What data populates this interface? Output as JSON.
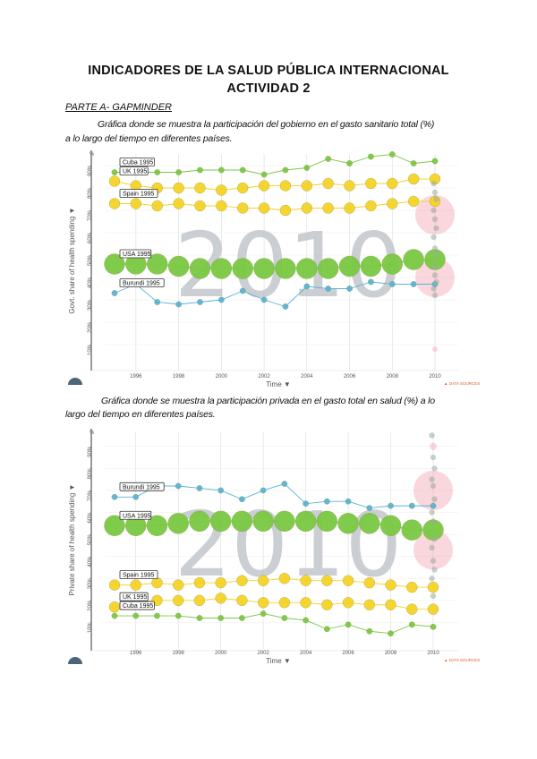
{
  "document": {
    "title_line1": "INDICADORES DE LA SALUD PÚBLICA INTERNACIONAL",
    "title_line2": "ACTIVIDAD 2",
    "section": "PARTE A- GAPMINDER",
    "caption1_line1": "Gráfica donde se muestra la participación del gobierno en el gasto sanitario total (%)",
    "caption1_line2": "a lo largo del tiempo en diferentes países.",
    "caption2_line1": "Gráfica donde se muestra la participación privada en el gasto total en salud (%) a lo",
    "caption2_line2": "largo del tiempo en diferentes países."
  },
  "chart_data": [
    {
      "type": "scatter",
      "title": "Govt. share of health spending",
      "ylabel": "Govt. share of health spending ▼",
      "xlabel": "Time ▼",
      "watermark_year": "2010",
      "source_label": "▲ DATA SOURCES",
      "x_ticks": [
        "1996",
        "1998",
        "2000",
        "2002",
        "2004",
        "2006",
        "2008",
        "2010"
      ],
      "y_ticks": [
        "10%",
        "20%",
        "30%",
        "40%",
        "50%",
        "60%",
        "70%",
        "80%",
        "90%"
      ],
      "y_unit": "%",
      "xlim": [
        1995,
        2010
      ],
      "ylim": [
        0,
        100
      ],
      "series": [
        {
          "name": "Cuba 1995",
          "color": "#7ac943",
          "size": "small",
          "x": [
            1995,
            1996,
            1997,
            1998,
            1999,
            2000,
            2001,
            2002,
            2003,
            2004,
            2005,
            2006,
            2007,
            2008,
            2009,
            2010
          ],
          "values": [
            87,
            87,
            87,
            87,
            88,
            88,
            88,
            86,
            88,
            89,
            93,
            91,
            94,
            95,
            91,
            92
          ]
        },
        {
          "name": "UK 1995",
          "color": "#f5d327",
          "size": "medium",
          "x": [
            1995,
            1996,
            1997,
            1998,
            1999,
            2000,
            2001,
            2002,
            2003,
            2004,
            2005,
            2006,
            2007,
            2008,
            2009,
            2010
          ],
          "values": [
            83,
            81,
            80,
            80,
            80,
            79,
            80,
            81,
            81,
            81,
            82,
            81,
            82,
            82,
            84,
            84
          ]
        },
        {
          "name": "Spain 1995",
          "color": "#f5d327",
          "size": "medium",
          "x": [
            1995,
            1996,
            1997,
            1998,
            1999,
            2000,
            2001,
            2002,
            2003,
            2004,
            2005,
            2006,
            2007,
            2008,
            2009,
            2010
          ],
          "values": [
            73,
            73,
            72,
            73,
            72,
            72,
            71,
            71,
            70,
            71,
            71,
            71,
            72,
            73,
            74,
            74
          ]
        },
        {
          "name": "USA 1995",
          "color": "#7ac943",
          "size": "large",
          "x": [
            1995,
            1996,
            1997,
            1998,
            1999,
            2000,
            2001,
            2002,
            2003,
            2004,
            2005,
            2006,
            2007,
            2008,
            2009,
            2010
          ],
          "values": [
            46,
            46,
            46,
            45,
            44,
            44,
            44,
            44,
            44,
            44,
            44,
            45,
            45,
            46,
            48,
            48
          ]
        },
        {
          "name": "Burundi 1995",
          "color": "#5ab4d6",
          "size": "small",
          "x": [
            1995,
            1996,
            1997,
            1998,
            1999,
            2000,
            2001,
            2002,
            2003,
            2004,
            2005,
            2006,
            2007,
            2008,
            2009,
            2010
          ],
          "values": [
            33,
            37,
            29,
            28,
            29,
            30,
            34,
            30,
            27,
            36,
            35,
            35,
            38,
            37,
            37,
            37
          ]
        }
      ]
    },
    {
      "type": "scatter",
      "title": "Private share of health spending",
      "ylabel": "Private share of health spending ▼",
      "xlabel": "Time ▼",
      "watermark_year": "2010",
      "source_label": "▲ DATA SOURCES",
      "x_ticks": [
        "1996",
        "1998",
        "2000",
        "2002",
        "2004",
        "2006",
        "2008",
        "2010"
      ],
      "y_ticks": [
        "10%",
        "20%",
        "30%",
        "40%",
        "50%",
        "60%",
        "70%",
        "80%",
        "90%"
      ],
      "y_unit": "%",
      "xlim": [
        1995,
        2010
      ],
      "ylim": [
        0,
        100
      ],
      "series": [
        {
          "name": "Burundi 1995",
          "color": "#5ab4d6",
          "size": "small",
          "x": [
            1995,
            1996,
            1997,
            1998,
            1999,
            2000,
            2001,
            2002,
            2003,
            2004,
            2005,
            2006,
            2007,
            2008,
            2009,
            2010
          ],
          "values": [
            67,
            67,
            72,
            72,
            71,
            70,
            66,
            70,
            73,
            64,
            65,
            65,
            62,
            63,
            63,
            63
          ]
        },
        {
          "name": "USA 1995",
          "color": "#7ac943",
          "size": "large",
          "x": [
            1995,
            1996,
            1997,
            1998,
            1999,
            2000,
            2001,
            2002,
            2003,
            2004,
            2005,
            2006,
            2007,
            2008,
            2009,
            2010
          ],
          "values": [
            54,
            54,
            54,
            55,
            56,
            56,
            56,
            56,
            56,
            56,
            56,
            55,
            55,
            54,
            52,
            52
          ]
        },
        {
          "name": "Spain 1995",
          "color": "#f5d327",
          "size": "medium",
          "x": [
            1995,
            1996,
            1997,
            1998,
            1999,
            2000,
            2001,
            2002,
            2003,
            2004,
            2005,
            2006,
            2007,
            2008,
            2009,
            2010
          ],
          "values": [
            27,
            27,
            28,
            27,
            28,
            28,
            29,
            29,
            30,
            29,
            29,
            29,
            28,
            27,
            26,
            26
          ]
        },
        {
          "name": "UK 1995",
          "color": "#f5d327",
          "size": "medium",
          "x": [
            1995,
            1996,
            1997,
            1998,
            1999,
            2000,
            2001,
            2002,
            2003,
            2004,
            2005,
            2006,
            2007,
            2008,
            2009,
            2010
          ],
          "values": [
            17,
            19,
            20,
            20,
            20,
            21,
            20,
            19,
            19,
            19,
            18,
            19,
            18,
            18,
            16,
            16
          ]
        },
        {
          "name": "Cuba 1995",
          "color": "#7ac943",
          "size": "small",
          "x": [
            1995,
            1996,
            1997,
            1998,
            1999,
            2000,
            2001,
            2002,
            2003,
            2004,
            2005,
            2006,
            2007,
            2008,
            2009,
            2010
          ],
          "values": [
            13,
            13,
            13,
            13,
            12,
            12,
            12,
            14,
            12,
            11,
            7,
            9,
            6,
            5,
            9,
            8
          ]
        }
      ]
    }
  ]
}
